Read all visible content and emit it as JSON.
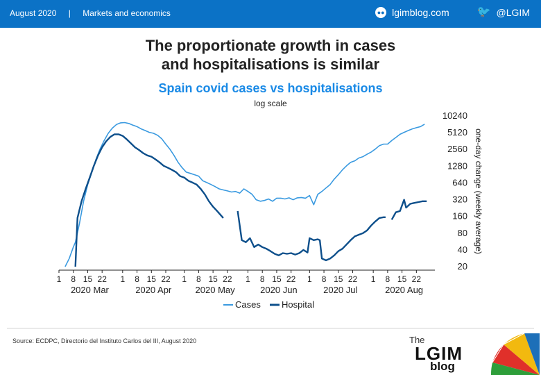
{
  "header": {
    "date": "August 2020",
    "separator": "|",
    "section": "Markets and economics",
    "site": "lgimblog.com",
    "twitter": "@LGIM"
  },
  "headline": {
    "line1": "The proportionate growth in cases",
    "line2": "and hospitalisations is similar"
  },
  "footer": {
    "source": "Source: ECDPC, Directorio del Instituto Carlos del III, August 2020"
  },
  "logo": {
    "the": "The",
    "main": "LGIM",
    "blog": "blog"
  },
  "chart_data": {
    "type": "line",
    "title": "Spain covid cases vs hospitalisations",
    "subtitle": "log scale",
    "ylabel": "one-day change (weekly average)",
    "ylog": true,
    "ylim": [
      20,
      10240
    ],
    "yticks": [
      20,
      40,
      80,
      160,
      320,
      640,
      1280,
      2560,
      5120,
      10240
    ],
    "y_axis_position": "right",
    "legend_position": "bottom",
    "grid": false,
    "xlim": [
      "2020-03-01",
      "2020-08-31"
    ],
    "x_day_ticks": [
      {
        "date": "2020-03-01",
        "label": "1"
      },
      {
        "date": "2020-03-08",
        "label": "8"
      },
      {
        "date": "2020-03-15",
        "label": "15"
      },
      {
        "date": "2020-03-22",
        "label": "22"
      },
      {
        "date": "2020-04-01",
        "label": "1"
      },
      {
        "date": "2020-04-08",
        "label": "8"
      },
      {
        "date": "2020-04-15",
        "label": "15"
      },
      {
        "date": "2020-04-22",
        "label": "22"
      },
      {
        "date": "2020-05-01",
        "label": "1"
      },
      {
        "date": "2020-05-08",
        "label": "8"
      },
      {
        "date": "2020-05-15",
        "label": "15"
      },
      {
        "date": "2020-05-22",
        "label": "22"
      },
      {
        "date": "2020-06-01",
        "label": "1"
      },
      {
        "date": "2020-06-08",
        "label": "8"
      },
      {
        "date": "2020-06-15",
        "label": "15"
      },
      {
        "date": "2020-06-22",
        "label": "22"
      },
      {
        "date": "2020-07-01",
        "label": "1"
      },
      {
        "date": "2020-07-08",
        "label": "8"
      },
      {
        "date": "2020-07-15",
        "label": "15"
      },
      {
        "date": "2020-07-22",
        "label": "22"
      },
      {
        "date": "2020-08-01",
        "label": "1"
      },
      {
        "date": "2020-08-08",
        "label": "8"
      },
      {
        "date": "2020-08-15",
        "label": "15"
      },
      {
        "date": "2020-08-22",
        "label": "22"
      }
    ],
    "x_month_labels": [
      {
        "date": "2020-03-16",
        "label": "2020 Mar"
      },
      {
        "date": "2020-04-16",
        "label": "2020 Apr"
      },
      {
        "date": "2020-05-16",
        "label": "2020 May"
      },
      {
        "date": "2020-06-16",
        "label": "2020 Jun"
      },
      {
        "date": "2020-07-16",
        "label": "2020 Jul"
      },
      {
        "date": "2020-08-16",
        "label": "2020 Aug"
      }
    ],
    "series": [
      {
        "name": "Cases",
        "color": "#3a9ae0",
        "points": [
          [
            "2020-03-04",
            20
          ],
          [
            "2020-03-06",
            28
          ],
          [
            "2020-03-08",
            45
          ],
          [
            "2020-03-09",
            55
          ],
          [
            "2020-03-11",
            120
          ],
          [
            "2020-03-13",
            300
          ],
          [
            "2020-03-15",
            600
          ],
          [
            "2020-03-17",
            1000
          ],
          [
            "2020-03-19",
            1700
          ],
          [
            "2020-03-21",
            2600
          ],
          [
            "2020-03-23",
            3700
          ],
          [
            "2020-03-25",
            5000
          ],
          [
            "2020-03-27",
            6200
          ],
          [
            "2020-03-29",
            7200
          ],
          [
            "2020-03-31",
            7700
          ],
          [
            "2020-04-02",
            7800
          ],
          [
            "2020-04-04",
            7500
          ],
          [
            "2020-04-06",
            7000
          ],
          [
            "2020-04-08",
            6600
          ],
          [
            "2020-04-10",
            6000
          ],
          [
            "2020-04-12",
            5600
          ],
          [
            "2020-04-14",
            5200
          ],
          [
            "2020-04-16",
            5000
          ],
          [
            "2020-04-18",
            4600
          ],
          [
            "2020-04-20",
            4000
          ],
          [
            "2020-04-22",
            3200
          ],
          [
            "2020-04-24",
            2600
          ],
          [
            "2020-04-26",
            2000
          ],
          [
            "2020-04-28",
            1500
          ],
          [
            "2020-04-30",
            1200
          ],
          [
            "2020-05-02",
            1000
          ],
          [
            "2020-05-04",
            950
          ],
          [
            "2020-05-06",
            900
          ],
          [
            "2020-05-08",
            850
          ],
          [
            "2020-05-10",
            700
          ],
          [
            "2020-05-12",
            650
          ],
          [
            "2020-05-14",
            600
          ],
          [
            "2020-05-16",
            550
          ],
          [
            "2020-05-18",
            500
          ],
          [
            "2020-05-20",
            480
          ],
          [
            "2020-05-22",
            460
          ],
          [
            "2020-05-24",
            440
          ],
          [
            "2020-05-26",
            450
          ],
          [
            "2020-05-28",
            420
          ],
          [
            "2020-05-30",
            500
          ],
          [
            "2020-06-01",
            450
          ],
          [
            "2020-06-03",
            400
          ],
          [
            "2020-06-05",
            320
          ],
          [
            "2020-06-07",
            300
          ],
          [
            "2020-06-09",
            310
          ],
          [
            "2020-06-11",
            330
          ],
          [
            "2020-06-13",
            300
          ],
          [
            "2020-06-15",
            340
          ],
          [
            "2020-06-17",
            340
          ],
          [
            "2020-06-19",
            330
          ],
          [
            "2020-06-21",
            345
          ],
          [
            "2020-06-23",
            320
          ],
          [
            "2020-06-25",
            345
          ],
          [
            "2020-06-27",
            350
          ],
          [
            "2020-06-29",
            340
          ],
          [
            "2020-07-01",
            380
          ],
          [
            "2020-07-03",
            260
          ],
          [
            "2020-07-05",
            400
          ],
          [
            "2020-07-07",
            450
          ],
          [
            "2020-07-09",
            520
          ],
          [
            "2020-07-11",
            600
          ],
          [
            "2020-07-13",
            750
          ],
          [
            "2020-07-15",
            900
          ],
          [
            "2020-07-17",
            1100
          ],
          [
            "2020-07-19",
            1300
          ],
          [
            "2020-07-21",
            1500
          ],
          [
            "2020-07-23",
            1600
          ],
          [
            "2020-07-25",
            1800
          ],
          [
            "2020-07-27",
            1900
          ],
          [
            "2020-07-29",
            2100
          ],
          [
            "2020-07-31",
            2300
          ],
          [
            "2020-08-02",
            2600
          ],
          [
            "2020-08-04",
            3000
          ],
          [
            "2020-08-06",
            3200
          ],
          [
            "2020-08-08",
            3200
          ],
          [
            "2020-08-10",
            3700
          ],
          [
            "2020-08-12",
            4200
          ],
          [
            "2020-08-14",
            4800
          ],
          [
            "2020-08-16",
            5200
          ],
          [
            "2020-08-18",
            5600
          ],
          [
            "2020-08-20",
            6000
          ],
          [
            "2020-08-22",
            6300
          ],
          [
            "2020-08-24",
            6600
          ],
          [
            "2020-08-26",
            7300
          ]
        ]
      },
      {
        "name": "Hospital",
        "color": "#0d4f8b",
        "segments": [
          [
            [
              "2020-03-09",
              20
            ],
            [
              "2020-03-10",
              150
            ],
            [
              "2020-03-12",
              300
            ],
            [
              "2020-03-14",
              500
            ],
            [
              "2020-03-16",
              800
            ],
            [
              "2020-03-18",
              1300
            ],
            [
              "2020-03-20",
              2000
            ],
            [
              "2020-03-22",
              2800
            ],
            [
              "2020-03-24",
              3600
            ],
            [
              "2020-03-26",
              4300
            ],
            [
              "2020-03-28",
              4800
            ],
            [
              "2020-03-30",
              4800
            ],
            [
              "2020-04-01",
              4500
            ],
            [
              "2020-04-03",
              3900
            ],
            [
              "2020-04-05",
              3300
            ],
            [
              "2020-04-07",
              2800
            ],
            [
              "2020-04-09",
              2500
            ],
            [
              "2020-04-11",
              2200
            ],
            [
              "2020-04-13",
              2000
            ],
            [
              "2020-04-15",
              1900
            ],
            [
              "2020-04-17",
              1700
            ],
            [
              "2020-04-19",
              1500
            ],
            [
              "2020-04-21",
              1300
            ],
            [
              "2020-04-23",
              1200
            ],
            [
              "2020-04-25",
              1100
            ],
            [
              "2020-04-27",
              1000
            ],
            [
              "2020-04-29",
              850
            ],
            [
              "2020-05-01",
              800
            ],
            [
              "2020-05-03",
              700
            ],
            [
              "2020-05-05",
              650
            ],
            [
              "2020-05-07",
              600
            ],
            [
              "2020-05-09",
              500
            ],
            [
              "2020-05-11",
              400
            ],
            [
              "2020-05-13",
              300
            ],
            [
              "2020-05-15",
              240
            ],
            [
              "2020-05-17",
              200
            ],
            [
              "2020-05-20",
              150
            ]
          ],
          [
            [
              "2020-05-27",
              200
            ],
            [
              "2020-05-29",
              60
            ],
            [
              "2020-05-31",
              55
            ],
            [
              "2020-06-02",
              65
            ],
            [
              "2020-06-04",
              45
            ],
            [
              "2020-06-06",
              50
            ],
            [
              "2020-06-08",
              45
            ],
            [
              "2020-06-10",
              42
            ],
            [
              "2020-06-12",
              38
            ],
            [
              "2020-06-14",
              34
            ],
            [
              "2020-06-16",
              32
            ],
            [
              "2020-06-18",
              35
            ],
            [
              "2020-06-20",
              34
            ],
            [
              "2020-06-22",
              35
            ],
            [
              "2020-06-24",
              33
            ],
            [
              "2020-06-26",
              35
            ],
            [
              "2020-06-28",
              40
            ],
            [
              "2020-06-30",
              36
            ],
            [
              "2020-07-01",
              65
            ],
            [
              "2020-07-03",
              60
            ],
            [
              "2020-07-05",
              62
            ],
            [
              "2020-07-06",
              60
            ],
            [
              "2020-07-07",
              28
            ],
            [
              "2020-07-09",
              26
            ],
            [
              "2020-07-11",
              28
            ],
            [
              "2020-07-13",
              32
            ],
            [
              "2020-07-15",
              38
            ],
            [
              "2020-07-17",
              42
            ],
            [
              "2020-07-19",
              50
            ],
            [
              "2020-07-21",
              60
            ],
            [
              "2020-07-23",
              70
            ],
            [
              "2020-07-25",
              75
            ],
            [
              "2020-07-27",
              80
            ],
            [
              "2020-07-29",
              90
            ],
            [
              "2020-07-31",
              110
            ],
            [
              "2020-08-02",
              130
            ],
            [
              "2020-08-04",
              150
            ],
            [
              "2020-08-06",
              155
            ],
            [
              "2020-08-07",
              155
            ]
          ],
          [
            [
              "2020-08-10",
              140
            ],
            [
              "2020-08-12",
              190
            ],
            [
              "2020-08-14",
              200
            ],
            [
              "2020-08-16",
              320
            ],
            [
              "2020-08-17",
              230
            ],
            [
              "2020-08-19",
              270
            ],
            [
              "2020-08-21",
              280
            ],
            [
              "2020-08-23",
              290
            ],
            [
              "2020-08-25",
              300
            ],
            [
              "2020-08-27",
              300
            ]
          ]
        ]
      }
    ]
  }
}
